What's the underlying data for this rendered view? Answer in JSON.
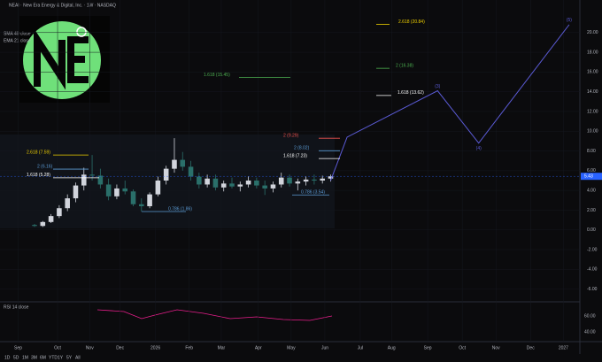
{
  "chart_data": {
    "type": "candlestick",
    "title": "NEAI · New Era Energy & Digital, Inc. · 1W · NASDAQ",
    "indicators": [
      "SMA 40 close",
      "EMA 21 close"
    ],
    "rsi_title": "RSI 14 close",
    "rsi_ticks": [
      "60.00",
      "40.00"
    ],
    "x": [
      2,
      3,
      4,
      5,
      6,
      7,
      8,
      9,
      10,
      11,
      12,
      13,
      14,
      15,
      16,
      17,
      18,
      19,
      20,
      21,
      22,
      23,
      24,
      25,
      26,
      27,
      28,
      29,
      30,
      31,
      32,
      33,
      34,
      35,
      36,
      37,
      38
    ],
    "open": [
      0.5,
      0.4,
      0.8,
      1.4,
      2.2,
      3.2,
      4.5,
      5.6,
      5.5,
      4.6,
      3.4,
      4.2,
      3.9,
      2.6,
      2.4,
      3.6,
      5.0,
      6.2,
      7.1,
      6.4,
      5.4,
      4.6,
      5.2,
      4.3,
      4.7,
      4.4,
      4.6,
      5.0,
      4.5,
      4.2,
      4.6,
      5.3,
      4.7,
      4.9,
      5.1,
      5.0,
      5.2
    ],
    "high": [
      0.6,
      0.9,
      1.6,
      2.5,
      3.6,
      4.8,
      6.3,
      7.59,
      6.2,
      5.2,
      4.6,
      5.0,
      4.1,
      3.2,
      3.8,
      5.4,
      6.5,
      9.29,
      7.9,
      7.0,
      5.8,
      5.6,
      5.6,
      5.0,
      5.3,
      4.9,
      5.4,
      5.3,
      5.0,
      4.9,
      5.8,
      5.6,
      5.2,
      5.4,
      5.6,
      5.5,
      5.6
    ],
    "low": [
      0.3,
      0.3,
      0.7,
      1.2,
      1.9,
      2.8,
      4.0,
      5.0,
      4.2,
      3.0,
      3.1,
      3.6,
      2.4,
      1.86,
      2.2,
      3.4,
      4.6,
      5.8,
      6.0,
      5.0,
      4.2,
      4.3,
      4.0,
      3.9,
      4.2,
      3.9,
      4.3,
      4.2,
      3.54,
      3.8,
      4.3,
      4.4,
      4.0,
      4.5,
      4.6,
      4.7,
      4.9
    ],
    "close": [
      0.4,
      0.8,
      1.4,
      2.2,
      3.2,
      4.5,
      5.6,
      5.5,
      4.6,
      3.4,
      4.2,
      3.9,
      2.6,
      2.4,
      3.6,
      5.0,
      6.2,
      7.1,
      6.4,
      5.4,
      4.6,
      5.2,
      4.3,
      4.7,
      4.4,
      4.6,
      5.0,
      4.5,
      4.2,
      4.6,
      5.3,
      4.7,
      4.9,
      5.1,
      5.0,
      5.2,
      5.43
    ],
    "up_color": "#d1d4dc",
    "down_color": "#2a6f6a",
    "last_price": {
      "value": 5.43,
      "label": "5.43"
    },
    "projection": {
      "color": "#5b5bd6",
      "x": [
        38,
        40,
        51,
        56,
        67
      ],
      "values": [
        5.0,
        9.4,
        14.1,
        8.8,
        20.8
      ],
      "wave_labels": [
        "(3)",
        "(4)",
        "(5)"
      ]
    },
    "fibs": [
      {
        "label": "2.618 (20.84)",
        "value": 20.84,
        "color": "#f0d000"
      },
      {
        "label": "2 (16.38)",
        "value": 16.38,
        "color": "#4caf50"
      },
      {
        "label": "1.618 (15.45)",
        "value": 15.45,
        "color": "#4caf50"
      },
      {
        "label": "1.618 (13.62)",
        "value": 13.62,
        "color": "#ffffff"
      },
      {
        "label": "2 (9.29)",
        "value": 9.29,
        "color": "#ef5350"
      },
      {
        "label": "2 (8.02)",
        "value": 8.02,
        "color": "#5b9bd5"
      },
      {
        "label": "1.618 (7.23)",
        "value": 7.23,
        "color": "#ffffff"
      },
      {
        "label": "2.618 (7.59)",
        "value": 7.59,
        "color": "#f0d000"
      },
      {
        "label": "2 (6.16)",
        "value": 6.16,
        "color": "#5b9bd5"
      },
      {
        "label": "1.618 (5.28)",
        "value": 5.28,
        "color": "#ffffff"
      },
      {
        "label": "0.786 (1.86)",
        "value": 1.86,
        "color": "#5b9bd5"
      },
      {
        "label": "0.786 (3.54)",
        "value": 3.54,
        "color": "#5b9bd5"
      }
    ],
    "ylim": [
      -7.2,
      23.3
    ],
    "yticks": [
      {
        "value": 20,
        "label": "20.00"
      },
      {
        "value": 18,
        "label": "18.00"
      },
      {
        "value": 16,
        "label": "16.00"
      },
      {
        "value": 14,
        "label": "14.00"
      },
      {
        "value": 12,
        "label": "12.00"
      },
      {
        "value": 10,
        "label": "10.00"
      },
      {
        "value": 8,
        "label": "8.00"
      },
      {
        "value": 6,
        "label": "6.00"
      },
      {
        "value": 4,
        "label": "4.00"
      },
      {
        "value": 2,
        "label": "2.00"
      },
      {
        "value": 0,
        "label": "0.00"
      },
      {
        "value": -2,
        "label": "-2.00"
      },
      {
        "value": -4,
        "label": "-4.00"
      },
      {
        "value": -6,
        "label": "-6.00"
      }
    ],
    "xlim": [
      -2.2,
      68.3
    ],
    "xticks": [
      {
        "value": 0,
        "label": "Sep"
      },
      {
        "value": 4.8,
        "label": "Oct"
      },
      {
        "value": 8.7,
        "label": "Nov"
      },
      {
        "value": 12.4,
        "label": "Dec"
      },
      {
        "value": 16.7,
        "label": "2026"
      },
      {
        "value": 20.8,
        "label": "Feb"
      },
      {
        "value": 24.7,
        "label": "Mar"
      },
      {
        "value": 29.2,
        "label": "Apr"
      },
      {
        "value": 33.2,
        "label": "May"
      },
      {
        "value": 37.3,
        "label": "Jun"
      },
      {
        "value": 41.6,
        "label": "Jul"
      },
      {
        "value": 45.4,
        "label": "Aug"
      },
      {
        "value": 49.8,
        "label": "Sep"
      },
      {
        "value": 54,
        "label": "Oct"
      },
      {
        "value": 58.1,
        "label": "Nov"
      },
      {
        "value": 62.3,
        "label": "Dec"
      },
      {
        "value": 66.3,
        "label": "2027"
      }
    ],
    "range_buttons": [
      "1D",
      "5D",
      "1M",
      "3M",
      "6M",
      "YTD",
      "1Y",
      "5Y",
      "All"
    ]
  }
}
